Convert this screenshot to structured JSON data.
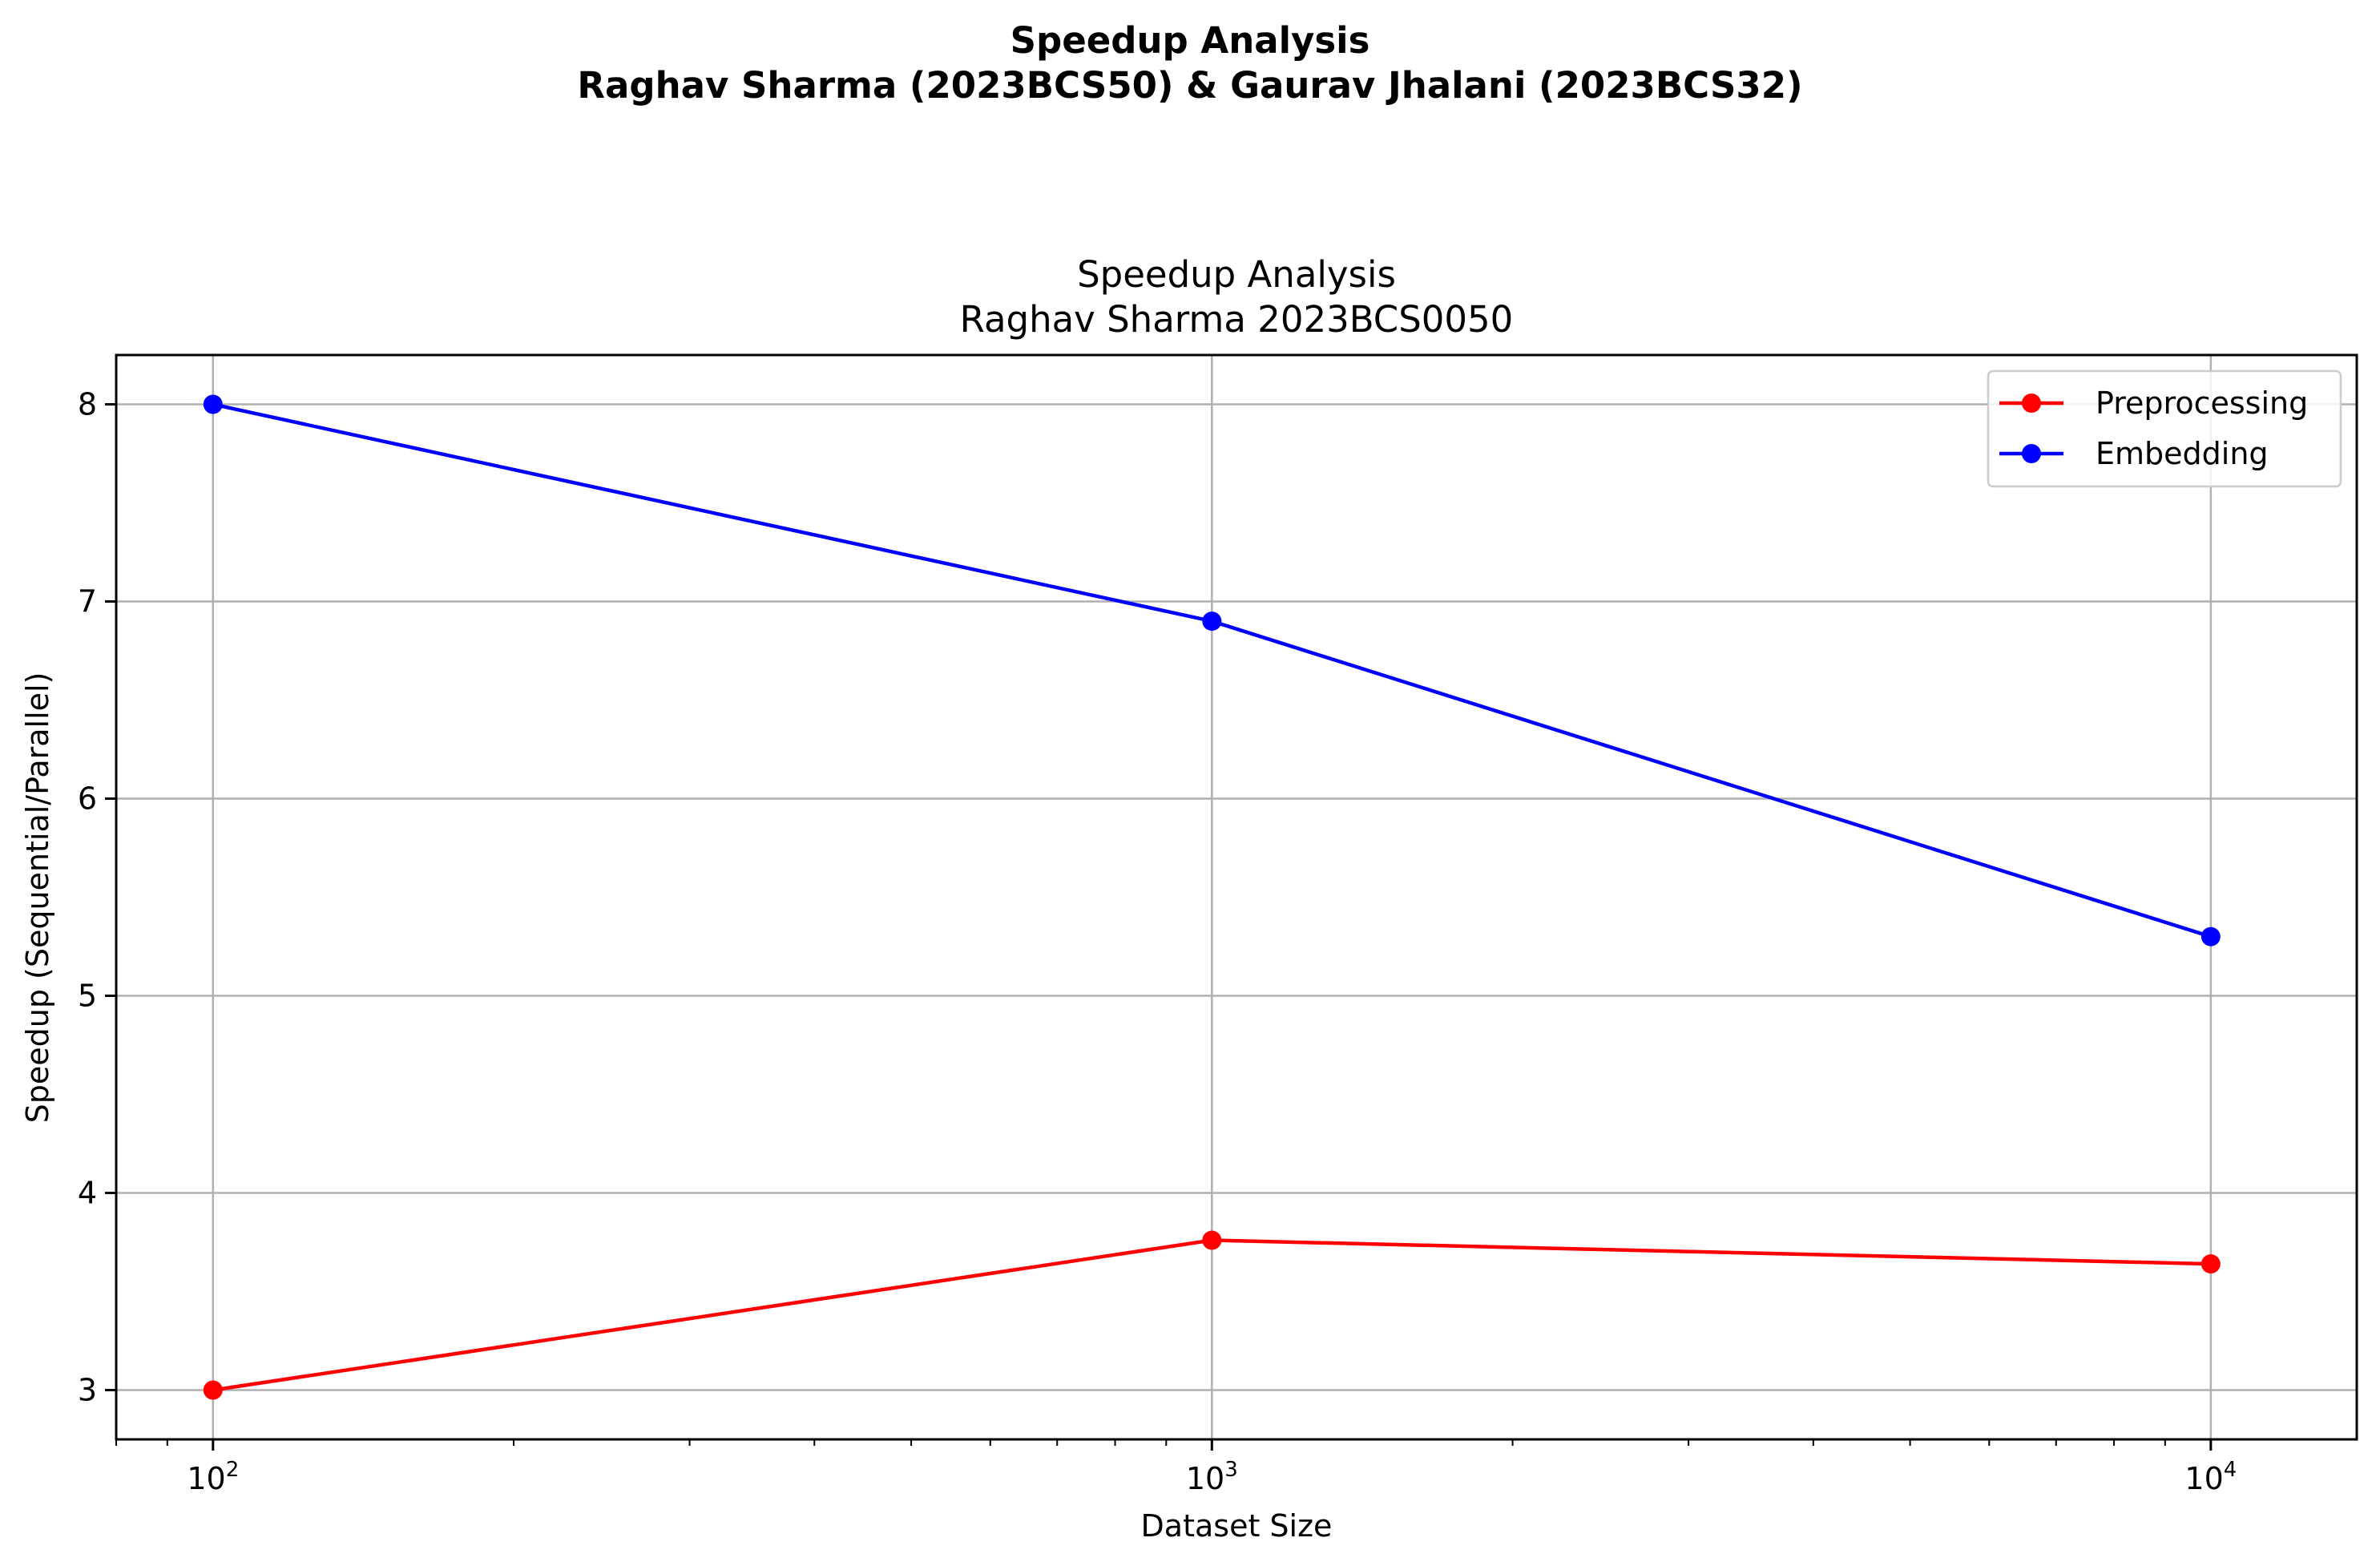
{
  "figure": {
    "suptitle_line1": "Speedup Analysis",
    "suptitle_line2": "Raghav Sharma (2023BCS50) & Gaurav Jhalani (2023BCS32)"
  },
  "chart_data": {
    "type": "line",
    "title_line1": "Speedup Analysis",
    "title_line2": "Raghav Sharma 2023BCS0050",
    "xlabel": "Dataset Size",
    "ylabel": "Speedup (Sequential/Parallel)",
    "x_scale": "log",
    "x": [
      100,
      1000,
      10000
    ],
    "x_tick_labels": [
      {
        "value": 100,
        "base": "10",
        "exp": "2"
      },
      {
        "value": 1000,
        "base": "10",
        "exp": "3"
      },
      {
        "value": 10000,
        "base": "10",
        "exp": "4"
      }
    ],
    "xlim": [
      80,
      14000
    ],
    "ylim": [
      2.75,
      8.25
    ],
    "y_ticks": [
      3,
      4,
      5,
      6,
      7,
      8
    ],
    "grid": true,
    "legend_position": "top-right",
    "series": [
      {
        "name": "Preprocessing",
        "color": "#ff0000",
        "marker": "circle",
        "values": [
          3.0,
          3.76,
          3.64
        ]
      },
      {
        "name": "Embedding",
        "color": "#0000ff",
        "marker": "circle",
        "values": [
          8.0,
          6.9,
          5.3
        ]
      }
    ]
  }
}
